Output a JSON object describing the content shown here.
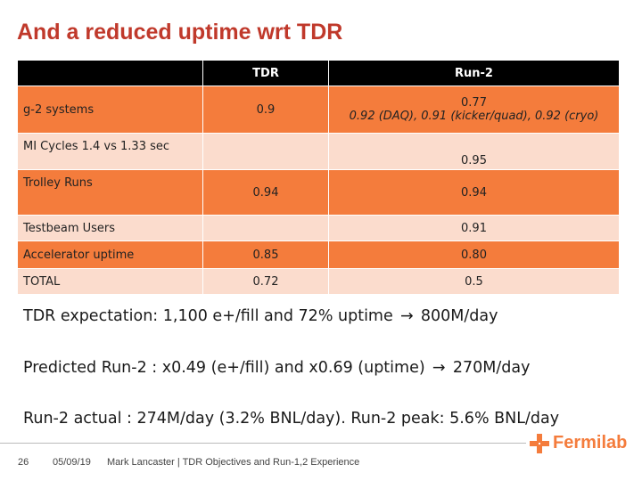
{
  "slide": {
    "title": "And a reduced uptime wrt TDR"
  },
  "table": {
    "headers": [
      "",
      "TDR",
      "Run-2"
    ],
    "rows": [
      {
        "label": "g-2 systems",
        "tdr": "0.9",
        "run2_line1": "0.77",
        "run2_line2": "0.92 (DAQ), 0.91 (kicker/quad), 0.92 (cryo)"
      },
      {
        "label": "MI Cycles 1.4 vs 1.33 sec",
        "tdr": "",
        "run2": "0.95"
      },
      {
        "label": "Trolley Runs",
        "tdr": "0.94",
        "run2": "0.94"
      },
      {
        "label": "Testbeam Users",
        "tdr": "",
        "run2": "0.91"
      },
      {
        "label": "Accelerator uptime",
        "tdr": "0.85",
        "run2": "0.80"
      },
      {
        "label": "TOTAL",
        "tdr": "0.72",
        "run2": "0.5"
      }
    ]
  },
  "lines": {
    "line1_a": "TDR expectation: 1,100 e+/fill and 72% uptime",
    "line1_b": "800M/day",
    "line2_a": "Predicted Run-2 : x0.49 (e+/fill) and x0.69 (uptime)",
    "line2_b": "270M/day",
    "line3": "Run-2 actual : 274M/day (3.2% BNL/day). Run-2 peak:  5.6% BNL/day"
  },
  "footer": {
    "page": "26",
    "date": "05/09/19",
    "text": "Mark Lancaster | TDR Objectives and Run-1,2 Experience",
    "logo": "Fermilab"
  },
  "colors": {
    "title": "#c0392b",
    "orange": "#f47c3c",
    "pale": "#fbdccd",
    "header": "#000000"
  },
  "icons": {
    "arrow": "right-arrow-icon",
    "logo": "fermilab-logo-icon"
  }
}
